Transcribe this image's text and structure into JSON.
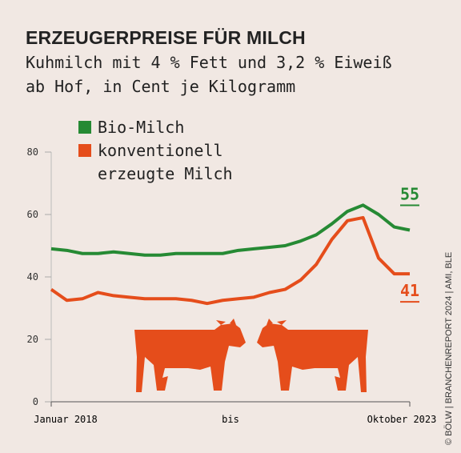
{
  "chart_data": {
    "type": "line",
    "title": "ERZEUGERPREISE FÜR MILCH",
    "subtitle": [
      "Kuhmilch mit 4 % Fett und 3,2 % Eiweiß",
      "ab Hof, in Cent je Kilogramm"
    ],
    "categories": [
      "Januar 2018",
      null,
      null,
      null,
      null,
      null,
      null,
      null,
      null,
      null,
      null,
      null,
      null,
      null,
      null,
      null,
      null,
      null,
      null,
      null,
      null,
      null,
      null,
      "Oktober 2023"
    ],
    "x_axis_label": "bis",
    "series": [
      {
        "name": "Bio-Milch",
        "color": "#268a34",
        "values": [
          49,
          48.5,
          47.5,
          47.5,
          48,
          47.5,
          47,
          47,
          47.5,
          47.5,
          47.5,
          47.5,
          48.5,
          49,
          49.5,
          50,
          51.5,
          53.5,
          57,
          61,
          63,
          60,
          56,
          55
        ]
      },
      {
        "name": "konventionell erzeugte Milch",
        "color": "#e54d1b",
        "values": [
          36,
          32.5,
          33,
          35,
          34,
          33.5,
          33,
          33,
          33,
          32.5,
          31.5,
          32.5,
          33,
          33.5,
          35,
          36,
          39,
          44,
          52,
          58,
          59,
          46,
          41,
          41
        ]
      }
    ],
    "ylim": [
      0,
      80
    ],
    "yticks": [
      0,
      20,
      40,
      60,
      80
    ],
    "source": "© BÖLW | BRANCHENREPORT 2024 | AMI, BLE"
  }
}
